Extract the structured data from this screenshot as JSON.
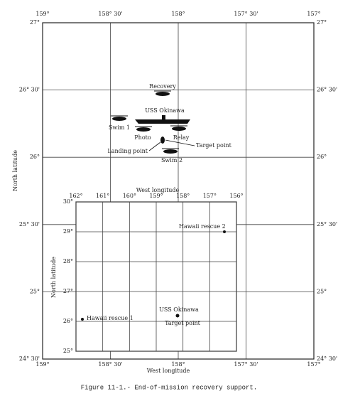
{
  "outer": {
    "x_labels": [
      "159°",
      "158° 30'",
      "158°",
      "157° 30'",
      "157°"
    ],
    "y_labels": [
      "27°",
      "26° 30'",
      "26°",
      "25° 30'",
      "25°",
      "24° 30'"
    ],
    "x_title": "West longitude",
    "y_title": "North latitude",
    "annotations": [
      "Recovery",
      "USS Okinawa",
      "Swim 1",
      "Photo",
      "Relay",
      "Target point",
      "Landing point",
      "Swim 2"
    ]
  },
  "inset": {
    "title": "West longitude",
    "x_labels": [
      "162°",
      "161°",
      "160°",
      "159°",
      "158°",
      "157°",
      "156°"
    ],
    "y_labels": [
      "30°",
      "29°",
      "28°",
      "27°",
      "26°",
      "25°"
    ],
    "y_title": "North latitude",
    "annotations": [
      "Hawaii rescue 2",
      "USS Okinawa",
      "Target point",
      "Hawaii rescue 1"
    ]
  },
  "caption": "Figure 11-1.- End-of-mission recovery support."
}
